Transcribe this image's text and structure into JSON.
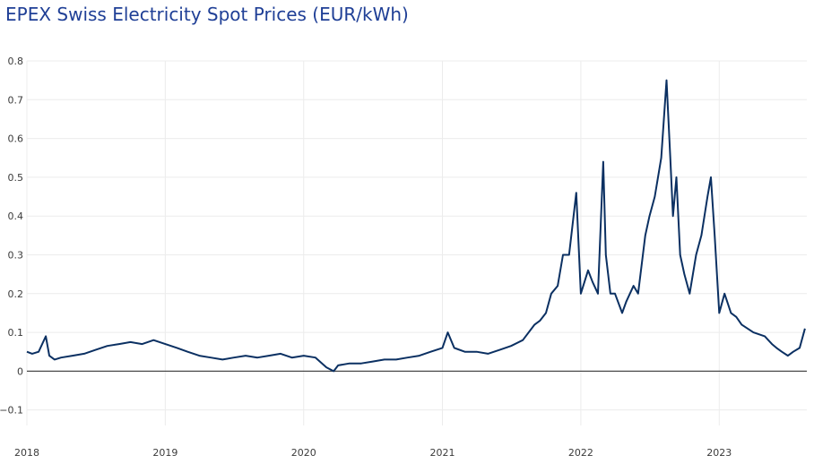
{
  "chart_data": {
    "type": "line",
    "title": "EPEX Swiss Electricity Spot Prices (EUR/kWh)",
    "xlabel": "",
    "ylabel": "",
    "x_ticks": [
      "2018",
      "2019",
      "2020",
      "2021",
      "2022",
      "2023"
    ],
    "xlim": [
      "2018-01-01",
      "2023-08-20"
    ],
    "y_ticks": [
      -0.1,
      0,
      0.1,
      0.2,
      0.3,
      0.4,
      0.5,
      0.6,
      0.7,
      0.8
    ],
    "ylim": [
      -0.14,
      0.8
    ],
    "grid": true,
    "line_color": "#0b3062",
    "series": [
      {
        "x": [
          "2018-01-01",
          "2018-01-15",
          "2018-02-01",
          "2018-02-20",
          "2018-03-01",
          "2018-03-15",
          "2018-04-01",
          "2018-05-01",
          "2018-06-01",
          "2018-07-01",
          "2018-08-01",
          "2018-09-01",
          "2018-10-01",
          "2018-11-01",
          "2018-12-01",
          "2019-01-01",
          "2019-02-01",
          "2019-03-01",
          "2019-04-01",
          "2019-05-01",
          "2019-06-01",
          "2019-07-01",
          "2019-08-01",
          "2019-09-01",
          "2019-10-01",
          "2019-11-01",
          "2019-12-01",
          "2020-01-01",
          "2020-02-01",
          "2020-03-01",
          "2020-03-20",
          "2020-04-01",
          "2020-05-01",
          "2020-06-01",
          "2020-07-01",
          "2020-08-01",
          "2020-09-01",
          "2020-10-01",
          "2020-11-01",
          "2020-12-01",
          "2021-01-01",
          "2021-01-15",
          "2021-02-01",
          "2021-03-01",
          "2021-04-01",
          "2021-05-01",
          "2021-06-01",
          "2021-07-01",
          "2021-08-01",
          "2021-09-01",
          "2021-09-15",
          "2021-10-01",
          "2021-10-15",
          "2021-11-01",
          "2021-11-15",
          "2021-12-01",
          "2021-12-20",
          "2022-01-01",
          "2022-01-20",
          "2022-02-01",
          "2022-02-15",
          "2022-03-01",
          "2022-03-08",
          "2022-03-20",
          "2022-04-01",
          "2022-04-20",
          "2022-05-01",
          "2022-05-20",
          "2022-06-01",
          "2022-06-20",
          "2022-07-01",
          "2022-07-15",
          "2022-08-01",
          "2022-08-15",
          "2022-08-25",
          "2022-09-01",
          "2022-09-10",
          "2022-09-20",
          "2022-10-01",
          "2022-10-15",
          "2022-11-01",
          "2022-11-15",
          "2022-12-01",
          "2022-12-10",
          "2022-12-20",
          "2023-01-01",
          "2023-01-15",
          "2023-02-01",
          "2023-02-15",
          "2023-03-01",
          "2023-04-01",
          "2023-05-01",
          "2023-05-20",
          "2023-06-01",
          "2023-06-15",
          "2023-07-01",
          "2023-07-15",
          "2023-08-01",
          "2023-08-15"
        ],
        "values": [
          0.05,
          0.045,
          0.05,
          0.09,
          0.04,
          0.03,
          0.035,
          0.04,
          0.045,
          0.055,
          0.065,
          0.07,
          0.075,
          0.07,
          0.08,
          0.07,
          0.06,
          0.05,
          0.04,
          0.035,
          0.03,
          0.035,
          0.04,
          0.035,
          0.04,
          0.045,
          0.035,
          0.04,
          0.035,
          0.01,
          0.0,
          0.015,
          0.02,
          0.02,
          0.025,
          0.03,
          0.03,
          0.035,
          0.04,
          0.05,
          0.06,
          0.1,
          0.06,
          0.05,
          0.05,
          0.045,
          0.055,
          0.065,
          0.08,
          0.12,
          0.13,
          0.15,
          0.2,
          0.22,
          0.3,
          0.3,
          0.46,
          0.2,
          0.26,
          0.23,
          0.2,
          0.54,
          0.3,
          0.2,
          0.2,
          0.15,
          0.18,
          0.22,
          0.2,
          0.35,
          0.4,
          0.45,
          0.55,
          0.75,
          0.55,
          0.4,
          0.5,
          0.3,
          0.25,
          0.2,
          0.3,
          0.35,
          0.45,
          0.5,
          0.35,
          0.15,
          0.2,
          0.15,
          0.14,
          0.12,
          0.1,
          0.09,
          0.07,
          0.06,
          0.05,
          0.04,
          0.05,
          0.06,
          0.11
        ]
      }
    ]
  }
}
